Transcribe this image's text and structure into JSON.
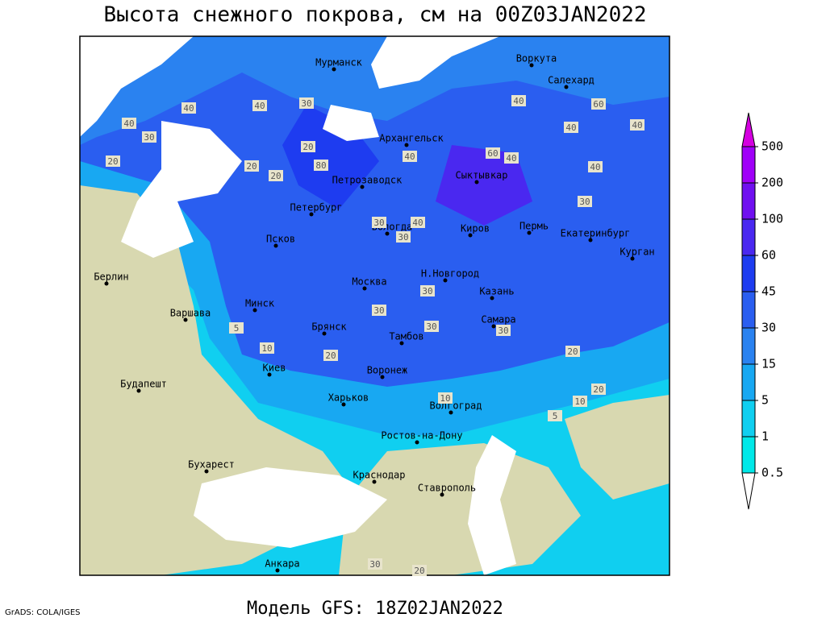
{
  "header": {
    "title": "Высота снежного покрова, см на 00Z03JAN2022",
    "subtitle": "Модель GFS: 18Z02JAN2022",
    "credit": "GrADS: COLA/IGES"
  },
  "legend": {
    "levels": [
      500,
      200,
      100,
      60,
      45,
      30,
      15,
      5,
      1,
      0.5
    ],
    "colors": [
      "#d400e0",
      "#a000f8",
      "#7010f0",
      "#4a28f0",
      "#1e3cf0",
      "#2a5ef0",
      "#2a82f0",
      "#18a8f2",
      "#10cff0",
      "#00e8e8",
      "#a0f4f4",
      "#ffffff"
    ]
  },
  "cities": [
    "Мурманск",
    "Воркута",
    "Салехард",
    "Архангельск",
    "Сыктывкар",
    "Петрозаводск",
    "Петербург",
    "Вологда",
    "Киров",
    "Пермь",
    "Екатеринбург",
    "Курган",
    "Псков",
    "Н.Новгород",
    "Казань",
    "Москва",
    "Минск",
    "Берлин",
    "Варшава",
    "Брянск",
    "Тамбов",
    "Самара",
    "Киев",
    "Воронеж",
    "Будапешт",
    "Харьков",
    "Волгоград",
    "Ростов-на-Дону",
    "Бухарест",
    "Краснодар",
    "Ставрополь",
    "Анкара"
  ],
  "contour_labels": [
    "20",
    "40",
    "40",
    "30",
    "20",
    "40",
    "20",
    "30",
    "20",
    "40",
    "40",
    "60",
    "80",
    "40",
    "30",
    "40",
    "40",
    "60",
    "40",
    "30",
    "40",
    "30",
    "5",
    "10",
    "20",
    "30",
    "30",
    "30",
    "30",
    "20",
    "10",
    "10",
    "5",
    "20",
    "30",
    "20"
  ]
}
